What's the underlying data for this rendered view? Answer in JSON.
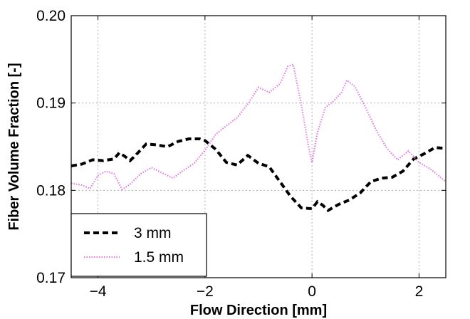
{
  "chart_data": {
    "type": "line",
    "xlabel": "Flow Direction [mm]",
    "ylabel": "Fiber Volume Fraction [-]",
    "xlim": [
      -4.5,
      2.5
    ],
    "ylim": [
      0.17,
      0.2
    ],
    "x_ticks": [
      -4,
      -2,
      0,
      2
    ],
    "x_tick_labels": [
      "−4",
      "−2",
      "0",
      "2"
    ],
    "y_ticks": [
      0.17,
      0.18,
      0.19,
      0.2
    ],
    "y_tick_labels": [
      "0.17",
      "0.18",
      "0.19",
      "0.20"
    ],
    "grid": true,
    "legend_position": "lower-left",
    "series": [
      {
        "name": "3 mm",
        "color": "#000000",
        "style": "dashed",
        "x": [
          -4.5,
          -4.3,
          -4.1,
          -3.9,
          -3.7,
          -3.6,
          -3.5,
          -3.4,
          -3.3,
          -3.1,
          -2.9,
          -2.7,
          -2.5,
          -2.3,
          -2.1,
          -2.0,
          -1.8,
          -1.6,
          -1.4,
          -1.2,
          -1.0,
          -0.8,
          -0.6,
          -0.4,
          -0.2,
          0.0,
          0.1,
          0.2,
          0.3,
          0.5,
          0.7,
          0.9,
          1.1,
          1.3,
          1.5,
          1.7,
          1.9,
          2.1,
          2.3,
          2.5
        ],
        "values": [
          0.1828,
          0.183,
          0.1835,
          0.1834,
          0.1836,
          0.1843,
          0.1839,
          0.1834,
          0.184,
          0.1853,
          0.1852,
          0.185,
          0.1856,
          0.1859,
          0.1859,
          0.1857,
          0.1847,
          0.1832,
          0.1829,
          0.184,
          0.1831,
          0.1827,
          0.181,
          0.1793,
          0.178,
          0.1779,
          0.1787,
          0.1783,
          0.1777,
          0.1784,
          0.1789,
          0.1797,
          0.181,
          0.1814,
          0.1815,
          0.1822,
          0.1836,
          0.1842,
          0.1849,
          0.1848
        ]
      },
      {
        "name": "1.5 mm",
        "color": "#e07be0",
        "style": "dotted",
        "x": [
          -4.5,
          -4.3,
          -4.15,
          -4.0,
          -3.85,
          -3.7,
          -3.55,
          -3.4,
          -3.2,
          -3.0,
          -2.8,
          -2.6,
          -2.4,
          -2.2,
          -2.0,
          -1.8,
          -1.6,
          -1.4,
          -1.2,
          -1.0,
          -0.8,
          -0.6,
          -0.45,
          -0.35,
          -0.2,
          -0.05,
          0.0,
          0.1,
          0.25,
          0.4,
          0.55,
          0.65,
          0.8,
          1.0,
          1.2,
          1.4,
          1.6,
          1.8,
          2.0,
          2.2,
          2.5
        ],
        "values": [
          0.1808,
          0.1806,
          0.1802,
          0.1817,
          0.1822,
          0.1819,
          0.1801,
          0.1807,
          0.1819,
          0.1826,
          0.182,
          0.1814,
          0.1823,
          0.1831,
          0.1846,
          0.1864,
          0.1874,
          0.1883,
          0.1899,
          0.1918,
          0.1912,
          0.1922,
          0.1942,
          0.1944,
          0.1898,
          0.1845,
          0.1832,
          0.1866,
          0.1895,
          0.1902,
          0.1912,
          0.1926,
          0.1919,
          0.1895,
          0.1869,
          0.1848,
          0.1835,
          0.1845,
          0.1832,
          0.1825,
          0.181
        ]
      }
    ]
  }
}
